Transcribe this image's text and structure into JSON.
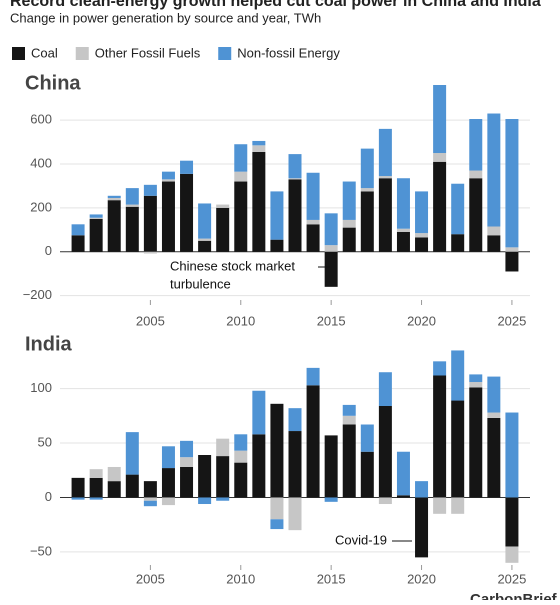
{
  "title": "Record clean-energy growth helped cut coal power in China and India",
  "subtitle": "Change in power generation by source and year, TWh",
  "source": "CarbonBrief",
  "chart_data": [
    {
      "type": "bar",
      "stacked": true,
      "title": "China",
      "x": [
        2001,
        2002,
        2003,
        2004,
        2005,
        2006,
        2007,
        2008,
        2009,
        2010,
        2011,
        2012,
        2013,
        2014,
        2015,
        2016,
        2017,
        2018,
        2019,
        2020,
        2021,
        2022,
        2023,
        2024,
        2025
      ],
      "xlim": [
        2000,
        2026
      ],
      "xticks": [
        2005,
        2010,
        2015,
        2020,
        2025
      ],
      "ylim": [
        -220,
        760
      ],
      "yticks": [
        {
          "value": -200,
          "label": "−200"
        },
        0,
        200,
        400,
        600
      ],
      "grid": true,
      "series": [
        {
          "name": "Coal",
          "color": "#151515",
          "values": [
            75,
            150,
            235,
            205,
            255,
            320,
            355,
            50,
            200,
            320,
            455,
            55,
            330,
            125,
            -160,
            110,
            275,
            335,
            90,
            65,
            410,
            80,
            335,
            75,
            -90
          ]
        },
        {
          "name": "Other Fossil Fuels",
          "color": "#c6c6c6",
          "values": [
            0,
            5,
            10,
            10,
            -8,
            10,
            0,
            10,
            15,
            45,
            30,
            0,
            5,
            20,
            30,
            35,
            15,
            10,
            15,
            20,
            40,
            0,
            35,
            40,
            20
          ]
        },
        {
          "name": "Non-fossil Energy",
          "color": "#4f93d4",
          "values": [
            50,
            15,
            10,
            75,
            50,
            35,
            60,
            160,
            0,
            125,
            20,
            220,
            110,
            215,
            145,
            175,
            180,
            215,
            230,
            190,
            310,
            230,
            235,
            515,
            585
          ]
        }
      ],
      "annotation": [
        "Chinese stock market",
        "turbulence"
      ]
    },
    {
      "type": "bar",
      "stacked": true,
      "title": "India",
      "x": [
        2001,
        2002,
        2003,
        2004,
        2005,
        2006,
        2007,
        2008,
        2009,
        2010,
        2011,
        2012,
        2013,
        2014,
        2015,
        2016,
        2017,
        2018,
        2019,
        2020,
        2021,
        2022,
        2023,
        2024,
        2025
      ],
      "xlim": [
        2000,
        2026
      ],
      "xticks": [
        2005,
        2010,
        2015,
        2020,
        2025
      ],
      "ylim": [
        -62,
        140
      ],
      "yticks": [
        {
          "value": -50,
          "label": "−50"
        },
        0,
        50,
        100
      ],
      "grid": true,
      "series": [
        {
          "name": "Coal",
          "color": "#151515",
          "values": [
            18,
            18,
            15,
            21,
            15,
            27,
            28,
            39,
            38,
            32,
            58,
            86,
            61,
            103,
            57,
            67,
            42,
            84,
            2,
            -55,
            112,
            89,
            101,
            73,
            -45
          ]
        },
        {
          "name": "Other Fossil Fuels",
          "color": "#c6c6c6",
          "values": [
            0,
            8,
            13,
            0,
            -3,
            -7,
            9,
            0,
            16,
            11,
            0,
            -20,
            -30,
            0,
            0,
            8,
            0,
            -6,
            0,
            0,
            -15,
            -15,
            5,
            5,
            -15
          ]
        },
        {
          "name": "Non-fossil Energy",
          "color": "#4f93d4",
          "values": [
            -2,
            -2,
            0,
            39,
            -5,
            20,
            15,
            -6,
            -3,
            15,
            40,
            -9,
            21,
            16,
            -4,
            10,
            25,
            31,
            40,
            15,
            13,
            46,
            7,
            33,
            78
          ]
        }
      ],
      "annotation": [
        "Covid-19"
      ]
    }
  ]
}
